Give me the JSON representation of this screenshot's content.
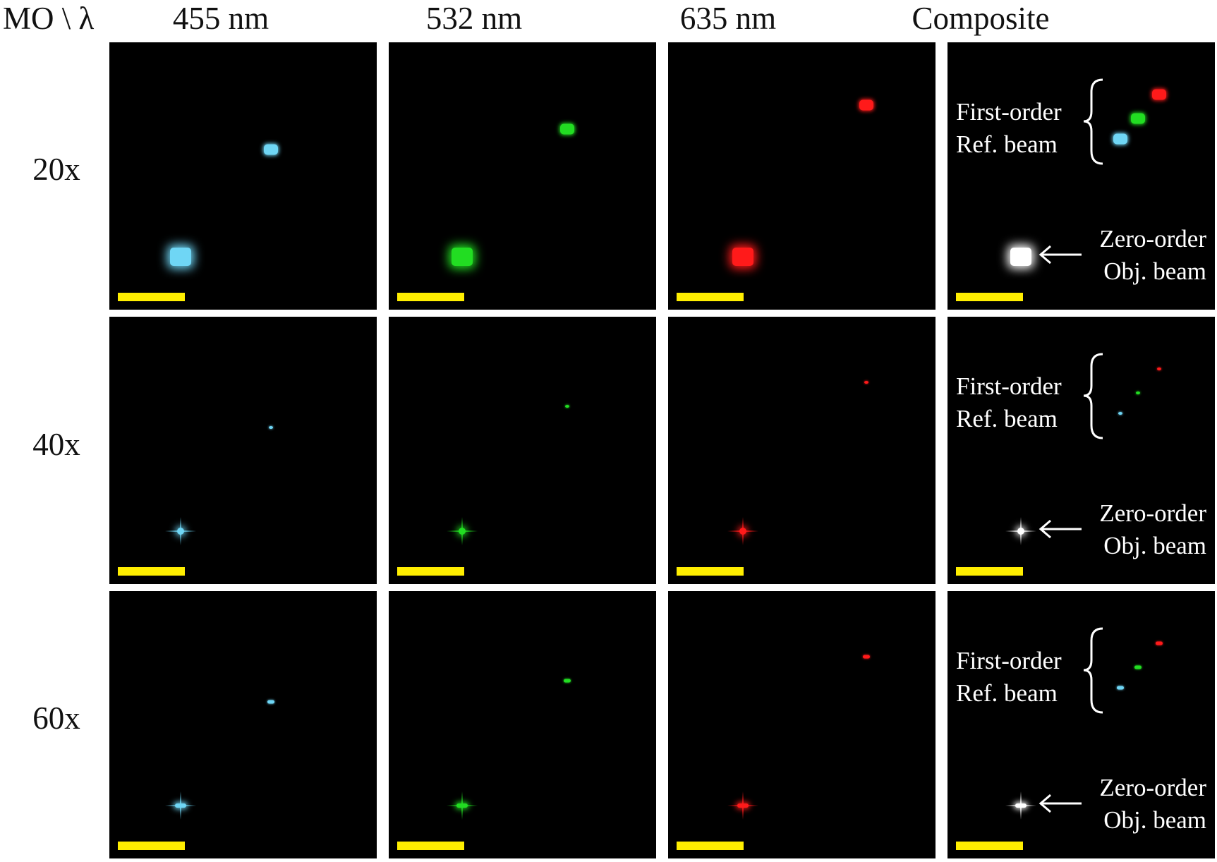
{
  "corner_label": "MO \\ λ",
  "columns": [
    {
      "label": "455 nm",
      "color": "#6fd6f5"
    },
    {
      "label": "532 nm",
      "color": "#22dd22"
    },
    {
      "label": "635 nm",
      "color": "#ff1a1a"
    },
    {
      "label": "Composite",
      "color": "#ffffff"
    }
  ],
  "rows": [
    {
      "label": "20x",
      "spot_style": "large"
    },
    {
      "label": "40x",
      "spot_style": "point"
    },
    {
      "label": "60x",
      "spot_style": "small"
    }
  ],
  "annotations": {
    "first_order_line1": "First-order",
    "first_order_line2": "Ref. beam",
    "zero_order_line1": "Zero-order",
    "zero_order_line2": "Obj. beam"
  },
  "scale_bar_color": "#ffee00",
  "icons": {
    "brace": "curly-brace-icon",
    "arrow": "left-arrow-icon"
  }
}
